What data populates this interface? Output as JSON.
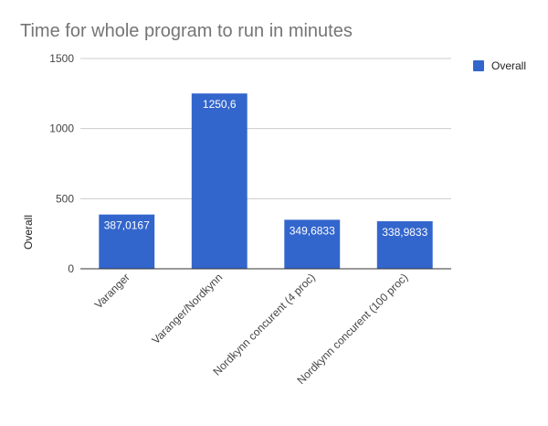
{
  "chart_data": {
    "type": "bar",
    "title": "Time for whole program to run in minutes",
    "xlabel": "",
    "ylabel": "Overall",
    "ylim": [
      0,
      1500
    ],
    "yticks": [
      0,
      500,
      1000,
      1500
    ],
    "grid": true,
    "legend_position": "right",
    "categories": [
      "Varanger",
      "Varanger/Nordkynn",
      "Nordkynn concurent (4 proc)",
      "Nordkynn concurent (100 proc)"
    ],
    "series": [
      {
        "name": "Overall",
        "color": "#3366cc",
        "values": [
          387.0167,
          1250.6,
          349.6833,
          338.9833
        ],
        "labels": [
          "387,0167",
          "1250,6",
          "349,6833",
          "338,9833"
        ]
      }
    ]
  }
}
